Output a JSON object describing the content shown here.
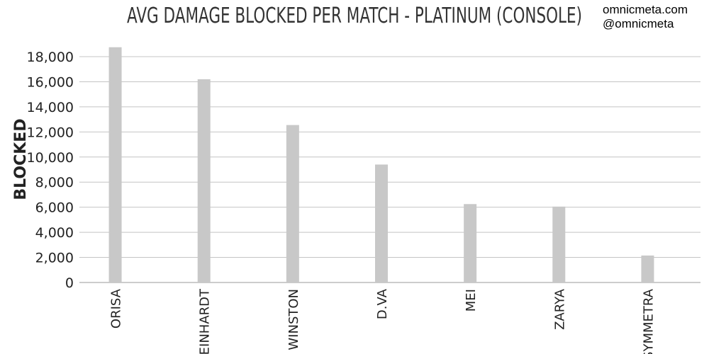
{
  "credits": {
    "site": "omnicmeta.com",
    "handle": "@omnicmeta"
  },
  "chart_data": {
    "type": "bar",
    "title": "AVG DAMAGE BLOCKED PER MATCH - PLATINUM (CONSOLE)",
    "xlabel": "",
    "ylabel": "BLOCKED",
    "categories": [
      "ORISA",
      "REINHARDT",
      "WINSTON",
      "D.VA",
      "MEI",
      "ZARYA",
      "SYMMETRA"
    ],
    "values": [
      18750,
      16200,
      12550,
      9400,
      6250,
      6050,
      2150
    ],
    "ylim": [
      0,
      18000
    ],
    "yticks": [
      0,
      2000,
      4000,
      6000,
      8000,
      10000,
      12000,
      14000,
      16000,
      18000
    ],
    "ytick_labels": [
      "0",
      "2,000",
      "4,000",
      "6,000",
      "8,000",
      "10,000",
      "12,000",
      "14,000",
      "16,000",
      "18,000"
    ],
    "grid": true,
    "bar_color": "#c8c8c8"
  }
}
